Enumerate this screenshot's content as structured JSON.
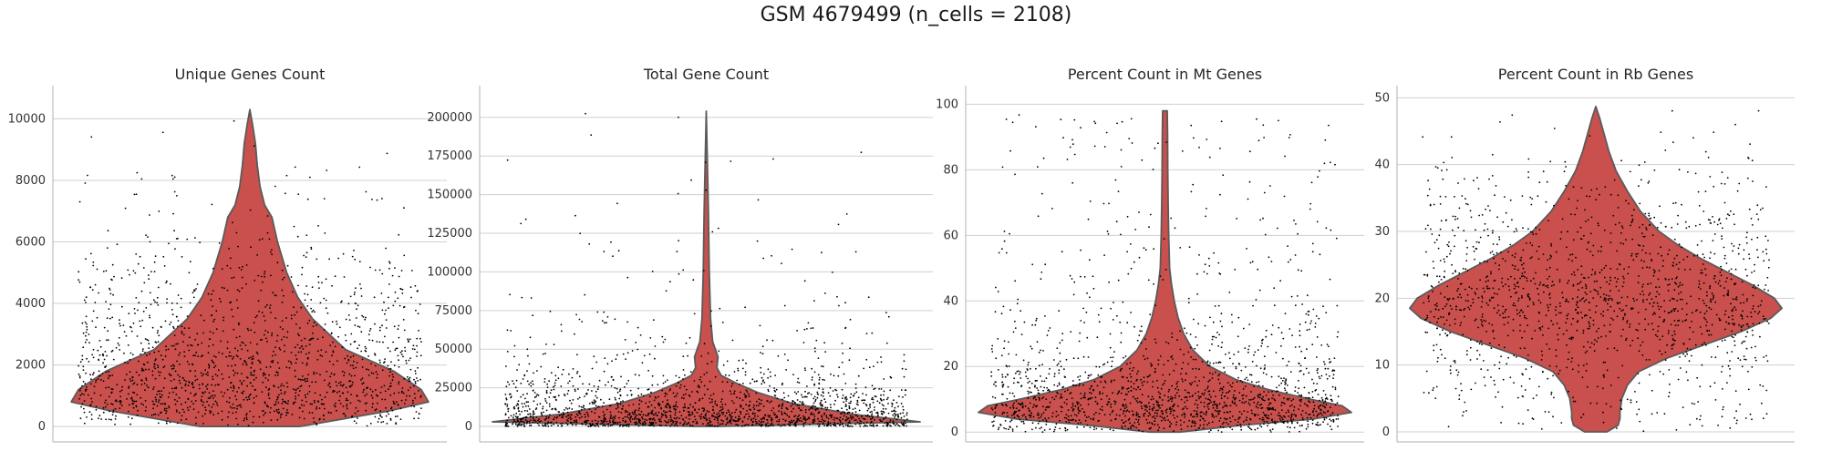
{
  "figure": {
    "title": "GSM 4679499 (n_cells = 2108)"
  },
  "colors": {
    "violin_fill": "#c9504c",
    "violin_edge": "#5a5a5a",
    "points": "#000000",
    "grid": "#cfcfcf",
    "spine": "#bdbdbd"
  },
  "chart_data": [
    {
      "type": "violin",
      "title": "Unique Genes Count",
      "xlabel": "",
      "ylabel": "",
      "ylim": [
        -500,
        10900
      ],
      "yticks": [
        0,
        2000,
        4000,
        6000,
        8000,
        10000
      ],
      "ytick_labels": [
        "0",
        "2000",
        "4000",
        "6000",
        "8000",
        "10000"
      ],
      "grid": true,
      "points_shown": true,
      "density": {
        "y": [
          0,
          500,
          800,
          1200,
          1800,
          2500,
          3500,
          4200,
          5000,
          6000,
          6800,
          7200,
          7800,
          8500,
          9200,
          9800,
          10300
        ],
        "half_width": [
          0.27,
          0.75,
          0.97,
          0.93,
          0.78,
          0.52,
          0.34,
          0.26,
          0.2,
          0.15,
          0.12,
          0.08,
          0.055,
          0.04,
          0.03,
          0.015,
          0
        ]
      },
      "cell_distribution": {
        "y": [
          0,
          500,
          1000,
          1500,
          2000,
          2500,
          3000,
          3500,
          4000,
          4500,
          5000,
          5500,
          6000,
          6500,
          7000,
          8000,
          9000,
          10300
        ],
        "weight": [
          0.2,
          0.9,
          1.0,
          0.9,
          0.75,
          0.55,
          0.45,
          0.38,
          0.32,
          0.26,
          0.2,
          0.14,
          0.1,
          0.06,
          0.04,
          0.025,
          0.012,
          0.005
        ]
      }
    },
    {
      "type": "violin",
      "title": "Total Gene Count",
      "xlabel": "",
      "ylabel": "",
      "ylim": [
        -10000,
        217000
      ],
      "yticks": [
        0,
        25000,
        50000,
        75000,
        100000,
        125000,
        150000,
        175000,
        200000
      ],
      "ytick_labels": [
        "0",
        "25000",
        "50000",
        "75000",
        "100000",
        "125000",
        "150000",
        "175000",
        "200000"
      ],
      "grid": true,
      "points_shown": true,
      "density": {
        "y": [
          0,
          3000,
          8000,
          15000,
          22000,
          28000,
          33000,
          38000,
          45000,
          55000,
          70000,
          100000,
          140000,
          204000
        ],
        "half_width": [
          0.05,
          1.0,
          0.68,
          0.4,
          0.24,
          0.14,
          0.07,
          0.05,
          0.055,
          0.03,
          0.02,
          0.014,
          0.01,
          0
        ]
      },
      "cell_distribution": {
        "y": [
          0,
          2500,
          5000,
          10000,
          15000,
          20000,
          25000,
          30000,
          40000,
          50000,
          60000,
          80000,
          100000,
          130000,
          205000
        ],
        "weight": [
          1.0,
          0.95,
          0.7,
          0.5,
          0.35,
          0.25,
          0.16,
          0.1,
          0.06,
          0.035,
          0.02,
          0.01,
          0.005,
          0.003,
          0.001
        ]
      }
    },
    {
      "type": "violin",
      "title": "Percent Count in Mt Genes",
      "xlabel": "",
      "ylabel": "",
      "ylim": [
        -3,
        104
      ],
      "yticks": [
        0,
        20,
        40,
        60,
        80,
        100
      ],
      "ytick_labels": [
        "0",
        "20",
        "40",
        "60",
        "80",
        "100"
      ],
      "grid": true,
      "points_shown": true,
      "density": {
        "y": [
          0,
          2,
          4,
          6,
          8,
          10,
          13,
          16,
          20,
          25,
          30,
          35,
          40,
          45,
          50,
          60,
          70,
          80,
          90,
          98
        ],
        "half_width": [
          0.08,
          0.4,
          0.8,
          1.0,
          0.95,
          0.78,
          0.55,
          0.38,
          0.24,
          0.15,
          0.1,
          0.07,
          0.05,
          0.035,
          0.025,
          0.02,
          0.017,
          0.015,
          0.014,
          0.012
        ]
      },
      "cell_distribution": {
        "y": [
          0,
          3,
          6,
          9,
          12,
          15,
          20,
          25,
          30,
          40,
          50,
          60,
          70,
          80,
          90,
          98
        ],
        "weight": [
          0.3,
          0.8,
          1.0,
          0.85,
          0.6,
          0.4,
          0.25,
          0.15,
          0.1,
          0.06,
          0.04,
          0.03,
          0.02,
          0.02,
          0.02,
          0.02
        ]
      }
    },
    {
      "type": "violin",
      "title": "Percent Count in Rb Genes",
      "xlabel": "",
      "ylabel": "",
      "ylim": [
        -1.5,
        51
      ],
      "yticks": [
        0,
        10,
        20,
        30,
        40,
        50
      ],
      "ytick_labels": [
        "0",
        "10",
        "20",
        "30",
        "40",
        "50"
      ],
      "grid": true,
      "points_shown": true,
      "density": {
        "y": [
          0,
          1,
          2,
          3,
          5,
          7,
          9,
          11,
          13,
          15,
          17,
          18.5,
          20,
          22,
          24,
          26,
          28,
          30,
          33,
          36,
          39,
          42,
          45,
          47,
          48.7
        ],
        "half_width": [
          0.06,
          0.12,
          0.13,
          0.13,
          0.14,
          0.17,
          0.23,
          0.38,
          0.58,
          0.78,
          0.94,
          1.0,
          0.96,
          0.84,
          0.7,
          0.56,
          0.44,
          0.34,
          0.24,
          0.17,
          0.11,
          0.07,
          0.04,
          0.02,
          0
        ]
      },
      "cell_distribution": {
        "y": [
          0,
          3,
          6,
          9,
          12,
          15,
          18,
          21,
          24,
          27,
          30,
          34,
          38,
          42,
          46,
          49
        ],
        "weight": [
          0.15,
          0.2,
          0.25,
          0.3,
          0.45,
          0.7,
          1.0,
          0.95,
          0.75,
          0.55,
          0.4,
          0.25,
          0.15,
          0.08,
          0.04,
          0.02
        ]
      }
    }
  ]
}
